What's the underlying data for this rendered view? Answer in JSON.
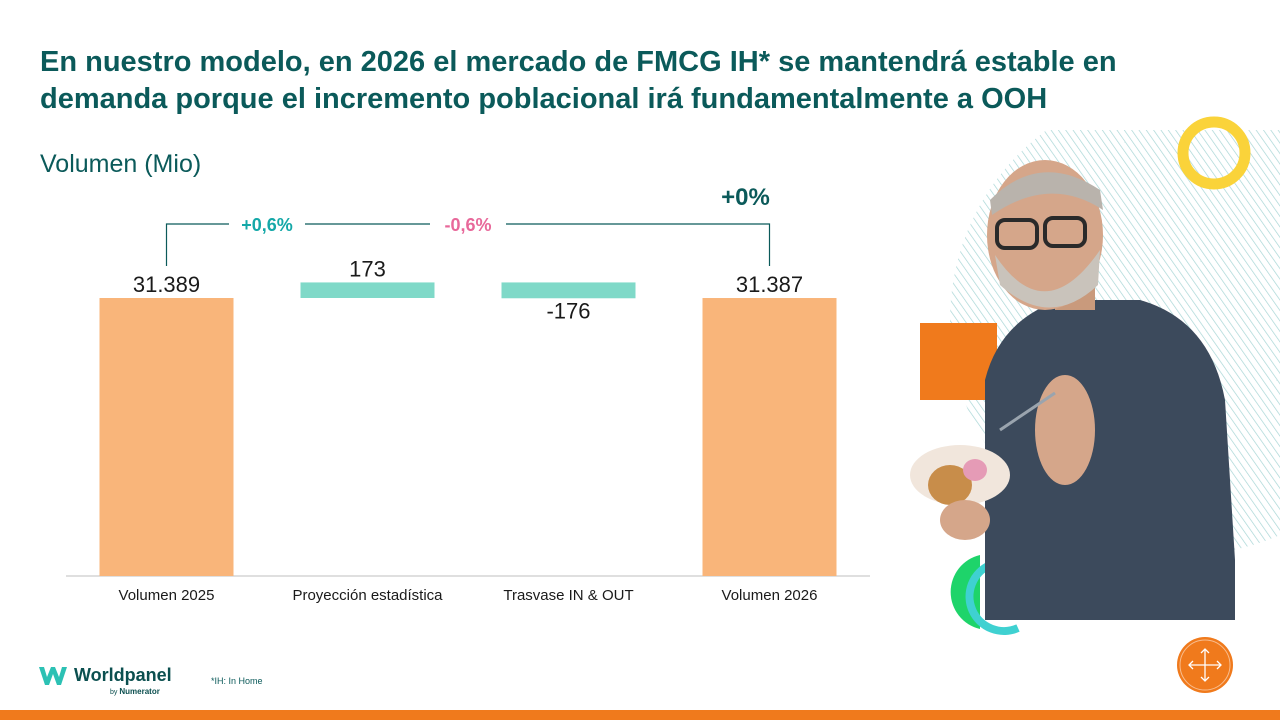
{
  "slide": {
    "title": "En nuestro modelo, en 2026 el mercado de FMCG IH* se mantendrá estable en demanda porque el incremento poblacional irá fundamentalmente a OOH",
    "subtitle": "Volumen (Mio)",
    "footnote": "*IH: In Home"
  },
  "brand": {
    "name": "Worldpanel",
    "by": "by",
    "partner": "Numerator"
  },
  "colors": {
    "title": "#0b5a5a",
    "bar": "#f9b57a",
    "bridge": "#7fd9c8",
    "positive": "#14a8a8",
    "negative": "#e8689a",
    "accent_orange": "#f07a1c",
    "accent_yellow": "#fad33a",
    "accent_green": "#1ed46a"
  },
  "chart_data": {
    "type": "waterfall",
    "categories": [
      "Volumen 2025",
      "Proyección estadística",
      "Trasvase IN & OUT",
      "Volumen 2026"
    ],
    "values": [
      31389,
      173,
      -176,
      31387
    ],
    "value_labels": [
      "31.389",
      "173",
      "-176",
      "31.387"
    ],
    "kinds": [
      "total",
      "delta",
      "delta",
      "total"
    ],
    "ylabel": "Volumen (Mio)",
    "annotations": [
      {
        "text": "+0,6%",
        "between": [
          0,
          1
        ],
        "tone": "positive"
      },
      {
        "text": "-0,6%",
        "between": [
          1,
          2
        ],
        "tone": "negative"
      },
      {
        "text": "+0%",
        "over": 3,
        "tone": "neutral"
      }
    ]
  }
}
